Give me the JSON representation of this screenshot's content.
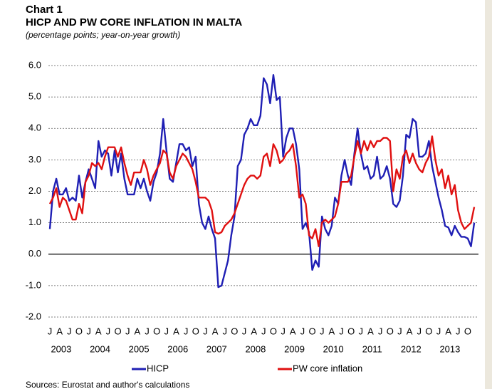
{
  "chart_data": {
    "type": "line",
    "label": "Chart 1",
    "title": "HICP AND PW CORE INFLATION IN MALTA",
    "subtitle": "(percentage points; year-on-year growth)",
    "source": "Sources: Eurostat and author's calculations",
    "categories": [
      "J",
      null,
      null,
      "A",
      null,
      null,
      "J",
      null,
      null,
      "O",
      null,
      null,
      "J",
      null,
      null,
      "A",
      null,
      null,
      "J",
      null,
      null,
      "O",
      null,
      null,
      "J",
      null,
      null,
      "A",
      null,
      null,
      "J",
      null,
      null,
      "O",
      null,
      null,
      "J",
      null,
      null,
      "A",
      null,
      null,
      "J",
      null,
      null,
      "O",
      null,
      null,
      "J",
      null,
      null,
      "A",
      null,
      null,
      "J",
      null,
      null,
      "O",
      null,
      null,
      "J",
      null,
      null,
      "A",
      null,
      null,
      "J",
      null,
      null,
      "O",
      null,
      null,
      "J",
      null,
      null,
      "A",
      null,
      null,
      "J",
      null,
      null,
      "O",
      null,
      null,
      "J",
      null,
      null,
      "A",
      null,
      null,
      "J",
      null,
      null,
      "O",
      null,
      null,
      "J",
      null,
      null,
      "A",
      null,
      null,
      "J",
      null,
      null,
      "O",
      null,
      null,
      "J",
      null,
      null,
      "A",
      null,
      null,
      "J",
      null,
      null,
      "O",
      null,
      null,
      "J",
      null,
      null,
      "A",
      null,
      null,
      "J",
      null,
      null,
      "O",
      null,
      null
    ],
    "years": [
      "2003",
      "2004",
      "2005",
      "2006",
      "2007",
      "2008",
      "2009",
      "2010",
      "2011",
      "2012",
      "2013"
    ],
    "series": [
      {
        "name": "HICP",
        "color": "#1f1fb4",
        "values": [
          0.8,
          2.0,
          2.4,
          1.9,
          1.9,
          2.1,
          1.7,
          1.8,
          1.7,
          2.5,
          1.8,
          2.3,
          2.7,
          2.4,
          2.1,
          3.6,
          3.1,
          3.3,
          3.2,
          2.5,
          3.3,
          2.6,
          3.2,
          2.4,
          1.9,
          1.9,
          1.9,
          2.4,
          2.1,
          2.4,
          2.0,
          1.7,
          2.3,
          2.6,
          3.2,
          4.3,
          3.3,
          2.4,
          2.3,
          2.9,
          3.5,
          3.5,
          3.3,
          3.4,
          2.8,
          3.1,
          1.6,
          1.0,
          0.8,
          1.2,
          0.8,
          0.5,
          -1.05,
          -1.0,
          -0.6,
          -0.2,
          0.6,
          1.2,
          2.8,
          3.0,
          3.8,
          4.0,
          4.3,
          4.1,
          4.1,
          4.4,
          5.6,
          5.4,
          4.8,
          5.7,
          4.9,
          5.0,
          3.1,
          3.7,
          4.0,
          4.0,
          3.5,
          2.7,
          0.8,
          1.0,
          0.7,
          -0.5,
          -0.2,
          -0.4,
          1.2,
          0.8,
          0.6,
          0.9,
          1.8,
          1.6,
          2.5,
          3.0,
          2.5,
          2.2,
          3.2,
          4.0,
          3.2,
          2.7,
          2.8,
          2.4,
          2.5,
          3.1,
          2.4,
          2.5,
          2.8,
          2.4,
          1.6,
          1.5,
          1.7,
          2.5,
          3.8,
          3.7,
          4.3,
          4.2,
          3.1,
          3.1,
          3.2,
          3.6,
          2.8,
          2.3,
          1.8,
          1.4,
          0.9,
          0.85,
          0.6,
          0.9,
          0.7,
          0.55,
          0.55,
          0.5,
          0.25,
          1.0
        ]
      },
      {
        "name": "PW core inflation",
        "color": "#e01010",
        "values": [
          1.6,
          1.8,
          2.1,
          1.5,
          1.8,
          1.7,
          1.4,
          1.1,
          1.1,
          1.6,
          1.3,
          2.3,
          2.5,
          2.9,
          2.8,
          2.9,
          2.7,
          3.1,
          3.4,
          3.4,
          3.4,
          3.1,
          3.4,
          2.9,
          2.5,
          2.2,
          2.6,
          2.6,
          2.6,
          3.0,
          2.7,
          2.2,
          2.5,
          2.7,
          2.9,
          3.3,
          3.2,
          2.6,
          2.4,
          2.8,
          3.0,
          3.2,
          3.1,
          2.9,
          2.7,
          2.3,
          1.8,
          1.8,
          1.8,
          1.7,
          1.4,
          0.7,
          0.65,
          0.7,
          0.9,
          1.0,
          1.1,
          1.3,
          1.6,
          1.9,
          2.2,
          2.4,
          2.5,
          2.5,
          2.4,
          2.5,
          3.1,
          3.2,
          2.8,
          3.5,
          3.3,
          2.9,
          3.0,
          3.2,
          3.3,
          3.5,
          2.8,
          1.8,
          1.9,
          1.6,
          0.6,
          0.5,
          0.8,
          0.25,
          1.0,
          1.1,
          1.0,
          1.1,
          1.2,
          1.6,
          2.3,
          2.3,
          2.3,
          2.5,
          3.1,
          3.6,
          3.2,
          3.6,
          3.3,
          3.6,
          3.4,
          3.6,
          3.6,
          3.7,
          3.7,
          3.6,
          2.0,
          2.7,
          2.4,
          3.1,
          3.3,
          2.9,
          3.2,
          2.9,
          2.7,
          2.6,
          2.9,
          3.1,
          3.75,
          3.0,
          2.5,
          2.7,
          2.1,
          2.5,
          1.9,
          2.2,
          1.4,
          1.0,
          0.8,
          0.9,
          1.0,
          1.5
        ]
      }
    ],
    "ylim": [
      -2,
      6
    ],
    "yticks": [
      {
        "value": -2,
        "label": "-2.0"
      },
      {
        "value": -1,
        "label": "-1.0"
      },
      {
        "value": 0,
        "label": "0.0"
      },
      {
        "value": 1,
        "label": "1.0"
      },
      {
        "value": 2,
        "label": "2.0"
      },
      {
        "value": 3,
        "label": "3.0"
      },
      {
        "value": 4,
        "label": "4.0"
      },
      {
        "value": 5,
        "label": "5.0"
      },
      {
        "value": 6,
        "label": "6.0"
      }
    ],
    "grid": true,
    "legend": "bottom"
  }
}
